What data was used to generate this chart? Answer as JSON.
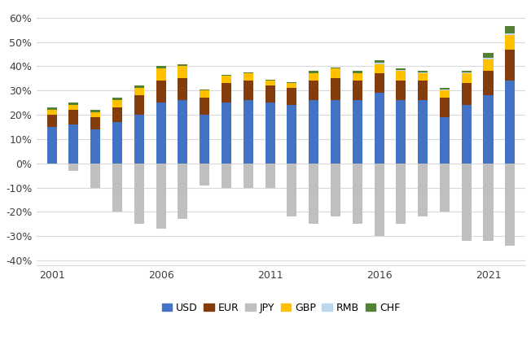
{
  "years": [
    2001,
    2002,
    2003,
    2004,
    2005,
    2006,
    2007,
    2008,
    2009,
    2010,
    2011,
    2012,
    2013,
    2014,
    2015,
    2016,
    2017,
    2018,
    2019,
    2020,
    2021,
    2022
  ],
  "USD": [
    15,
    16,
    14,
    17,
    20,
    25,
    26,
    20,
    25,
    26,
    25,
    24,
    26,
    26,
    26,
    29,
    26,
    26,
    19,
    24,
    28,
    34
  ],
  "EUR": [
    5,
    6,
    5,
    6,
    8,
    9,
    9,
    7,
    8,
    8,
    7,
    7,
    8,
    9,
    8,
    8,
    8,
    8,
    8,
    9,
    10,
    13
  ],
  "JPY": [
    0,
    -3,
    -10,
    -20,
    -25,
    -27,
    -23,
    -9,
    -10,
    -10,
    -10,
    -22,
    -25,
    -22,
    -25,
    -30,
    -25,
    -22,
    -20,
    -32,
    -32,
    -34
  ],
  "GBP": [
    2,
    2,
    2,
    3,
    3,
    5,
    5,
    3,
    3,
    3,
    2,
    2,
    3,
    4,
    3,
    4,
    4,
    3,
    3,
    4,
    5,
    6
  ],
  "RMB": [
    0,
    0,
    0,
    0,
    0,
    0,
    0,
    0,
    0,
    0,
    0,
    0,
    0,
    0,
    0,
    0.5,
    0.5,
    0.5,
    0.5,
    0.5,
    0.5,
    0.5
  ],
  "CHF": [
    1,
    1,
    1,
    1,
    1,
    1,
    1,
    0.5,
    0.5,
    0.5,
    0.5,
    0.5,
    1,
    0.5,
    1,
    1,
    0.5,
    0.5,
    0.5,
    0.5,
    2,
    3
  ],
  "colors": {
    "USD": "#4472C4",
    "EUR": "#843C0C",
    "JPY": "#BFBFBF",
    "GBP": "#FFC000",
    "RMB": "#BDD7EE",
    "CHF": "#548235"
  },
  "ylim_bottom": -42,
  "ylim_top": 65,
  "yticks": [
    -40,
    -30,
    -20,
    -10,
    0,
    10,
    20,
    30,
    40,
    50,
    60
  ],
  "ytick_labels": [
    "-40%",
    "-30%",
    "-20%",
    "-10%",
    "0%",
    "10%",
    "20%",
    "30%",
    "40%",
    "50%",
    "60%"
  ],
  "bar_width": 0.45,
  "xtick_years": [
    2001,
    2006,
    2011,
    2016,
    2021
  ]
}
